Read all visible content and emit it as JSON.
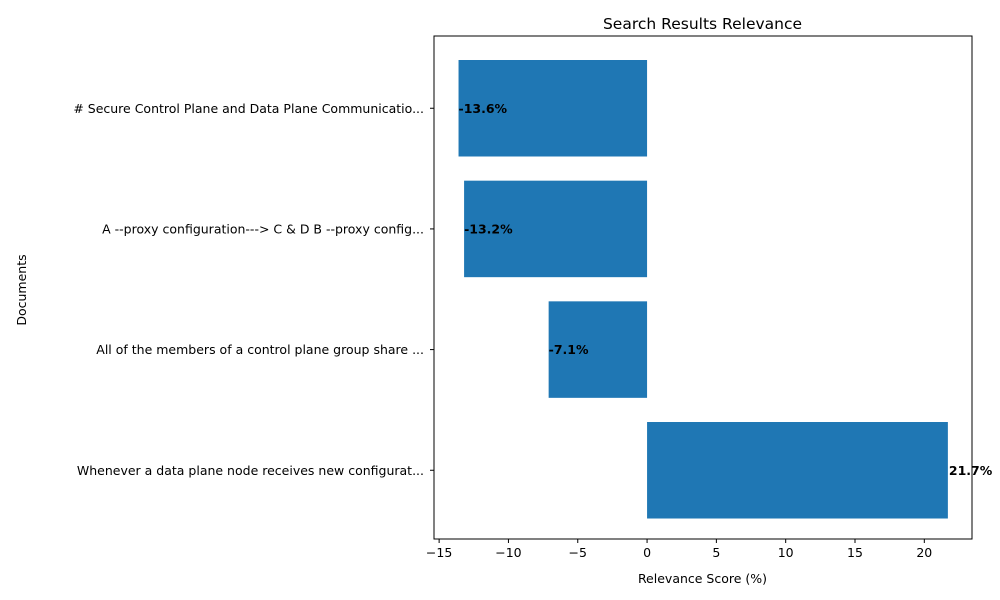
{
  "chart_data": {
    "type": "bar",
    "orientation": "horizontal",
    "title": "Search Results Relevance",
    "xlabel": "Relevance Score (%)",
    "ylabel": "Documents",
    "categories": [
      "# Secure Control Plane and Data Plane Communicatio...",
      "A --proxy configuration---> C & D B --proxy config...",
      "All of the members of a control plane group share ...",
      "Whenever a data plane node receives new configurat..."
    ],
    "values": [
      -13.6,
      -13.2,
      -7.1,
      21.7
    ],
    "data_labels": [
      "-13.6%",
      "-13.2%",
      "-7.1%",
      "21.7%"
    ],
    "xlim": [
      -15.37,
      23.44
    ],
    "xticks": [
      -15,
      -10,
      -5,
      0,
      5,
      10,
      15,
      20
    ],
    "xtick_labels": [
      "−15",
      "−10",
      "−5",
      "0",
      "5",
      "10",
      "15",
      "20"
    ],
    "bar_color": "#1f77b4",
    "grid": false,
    "legend": "none"
  }
}
